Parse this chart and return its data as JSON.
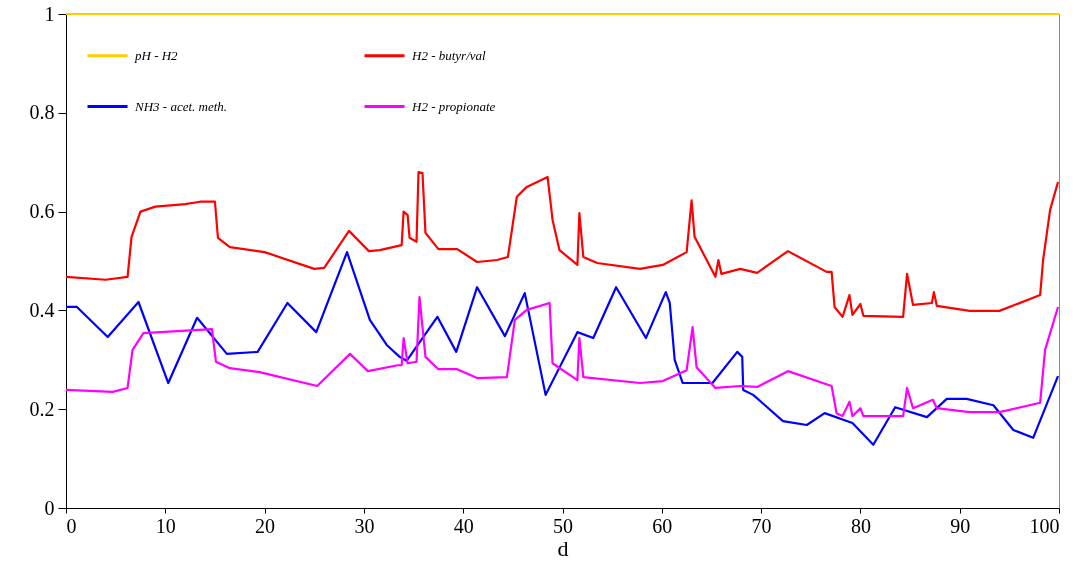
{
  "chart_data": {
    "type": "line",
    "xlabel": "d",
    "xlim": [
      0,
      100
    ],
    "xticks": [
      0,
      10,
      20,
      30,
      40,
      50,
      60,
      70,
      80,
      90,
      100
    ],
    "ylim": [
      0,
      1
    ],
    "yticks": [
      0,
      0.2,
      0.4,
      0.6,
      0.8,
      1
    ],
    "grid": false,
    "legend": "top left",
    "line_style": "solid",
    "series": [
      {
        "name": "pH - H2",
        "color": "#ffcc00",
        "x": [
          0,
          100
        ],
        "values": [
          1,
          1
        ]
      },
      {
        "name": "H2 - butyr/val",
        "color": "#ff0000",
        "x": [
          0,
          4,
          6.2,
          6.6,
          7.5,
          9,
          12,
          13.5,
          15,
          15.3,
          16.5,
          20,
          25,
          26,
          28.5,
          30.5,
          31.6,
          33.8,
          34,
          34.4,
          34.6,
          35.3,
          35.5,
          35.9,
          36.2,
          37.5,
          39.4,
          41.4,
          43.4,
          44.5,
          45.4,
          46.4,
          48.5,
          49,
          49.7,
          51.5,
          51.7,
          52.1,
          53.5,
          57.8,
          60.1,
          62.5,
          63,
          63.3,
          65.4,
          65.7,
          66,
          67.9,
          69.6,
          72.7,
          76.6,
          77.1,
          77.4,
          78.2,
          78.9,
          79.2,
          80,
          80.3,
          84.3,
          84.7,
          85.3,
          87.2,
          87.4,
          87.7,
          91,
          94,
          98.1,
          98.4,
          99.1,
          99.9
        ],
        "values": [
          0.468,
          0.462,
          0.468,
          0.549,
          0.6,
          0.61,
          0.615,
          0.62,
          0.62,
          0.547,
          0.528,
          0.518,
          0.484,
          0.486,
          0.561,
          0.52,
          0.522,
          0.532,
          0.6,
          0.593,
          0.547,
          0.539,
          0.68,
          0.678,
          0.557,
          0.524,
          0.524,
          0.498,
          0.502,
          0.508,
          0.63,
          0.65,
          0.67,
          0.583,
          0.522,
          0.492,
          0.597,
          0.508,
          0.496,
          0.484,
          0.492,
          0.518,
          0.623,
          0.549,
          0.468,
          0.502,
          0.474,
          0.484,
          0.476,
          0.52,
          0.478,
          0.478,
          0.407,
          0.387,
          0.431,
          0.391,
          0.413,
          0.389,
          0.387,
          0.474,
          0.411,
          0.415,
          0.437,
          0.409,
          0.399,
          0.399,
          0.431,
          0.502,
          0.603,
          0.66
        ]
      },
      {
        "name": "NH3 - acet. meth.",
        "color": "#0000ff",
        "x": [
          0,
          1.1,
          4.2,
          7.3,
          10.3,
          13.2,
          16.2,
          19.3,
          22.3,
          25.2,
          28.3,
          30.6,
          32.3,
          33.6,
          34.3,
          37.4,
          39.3,
          41.4,
          44.2,
          46.2,
          48.3,
          51.5,
          53.1,
          55.4,
          58.4,
          60.4,
          60.8,
          61.3,
          62.1,
          65.1,
          67.6,
          68.1,
          68.2,
          69.2,
          72.2,
          74.6,
          76.4,
          79.2,
          81.3,
          83.5,
          86.7,
          88.7,
          90.7,
          93.4,
          95.4,
          97.4,
          99.9
        ],
        "values": [
          0.407,
          0.407,
          0.346,
          0.417,
          0.253,
          0.385,
          0.312,
          0.316,
          0.415,
          0.356,
          0.518,
          0.381,
          0.33,
          0.306,
          0.298,
          0.387,
          0.316,
          0.447,
          0.348,
          0.435,
          0.229,
          0.356,
          0.344,
          0.447,
          0.344,
          0.437,
          0.415,
          0.3,
          0.253,
          0.253,
          0.316,
          0.306,
          0.239,
          0.229,
          0.176,
          0.168,
          0.192,
          0.172,
          0.128,
          0.204,
          0.184,
          0.221,
          0.221,
          0.208,
          0.158,
          0.142,
          0.267
        ]
      },
      {
        "name": "H2 - propionate",
        "color": "#ff00ff",
        "x": [
          0,
          4.7,
          6.2,
          6.7,
          7.8,
          11.2,
          14.7,
          15.1,
          16.5,
          19.5,
          25.3,
          28.6,
          30.4,
          33.4,
          33.8,
          34,
          34.4,
          35.3,
          35.6,
          36.2,
          37.5,
          39.4,
          41.4,
          44.4,
          45.2,
          46.4,
          48.7,
          49,
          51.5,
          51.7,
          52.1,
          57.8,
          60.1,
          62.5,
          63.1,
          63.5,
          65.4,
          67.9,
          69.6,
          72.7,
          77.1,
          77.6,
          78.2,
          78.9,
          79.2,
          80,
          80.3,
          84.3,
          84.7,
          85.3,
          87.3,
          87.7,
          91,
          94,
          98.1,
          98.6,
          99.9
        ],
        "values": [
          0.239,
          0.235,
          0.243,
          0.32,
          0.354,
          0.358,
          0.362,
          0.296,
          0.283,
          0.275,
          0.247,
          0.312,
          0.277,
          0.289,
          0.289,
          0.344,
          0.293,
          0.296,
          0.427,
          0.306,
          0.281,
          0.281,
          0.263,
          0.265,
          0.381,
          0.401,
          0.415,
          0.293,
          0.259,
          0.344,
          0.265,
          0.253,
          0.257,
          0.279,
          0.366,
          0.285,
          0.243,
          0.247,
          0.245,
          0.277,
          0.247,
          0.192,
          0.186,
          0.215,
          0.186,
          0.202,
          0.186,
          0.186,
          0.243,
          0.202,
          0.219,
          0.202,
          0.194,
          0.194,
          0.213,
          0.32,
          0.407
        ]
      }
    ]
  }
}
